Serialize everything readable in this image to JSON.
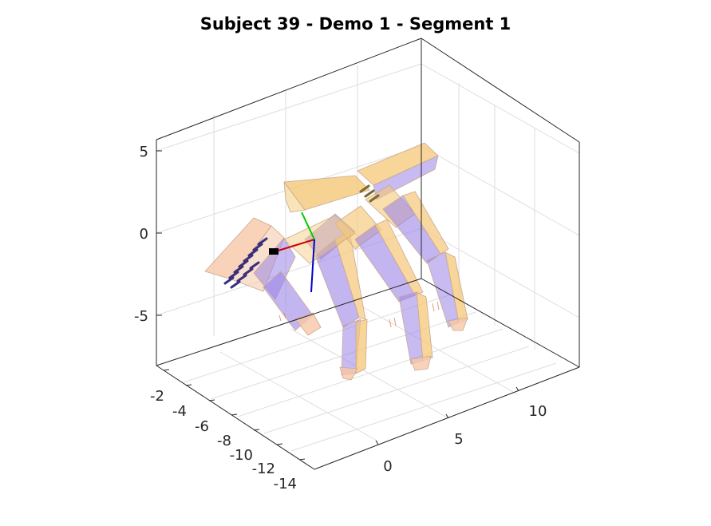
{
  "chart_data": {
    "type": "3d-surface",
    "title": "Subject 39 - Demo 1 - Segment 1",
    "xlabel": "",
    "ylabel": "",
    "zlabel": "",
    "x_ticks": [
      "0",
      "5",
      "10"
    ],
    "y_ticks": [
      "-2",
      "-4",
      "-6",
      "-8",
      "-10",
      "-12",
      "-14"
    ],
    "z_ticks": [
      "5",
      "0",
      "-5"
    ],
    "grid": true,
    "box": true,
    "colors": {
      "hand_model_a": "#f5c878",
      "hand_model_b": "#9b84e6",
      "hand_model_c": "#f7c7a9",
      "axis_x": "#cc0000",
      "axis_y": "#00cc00",
      "axis_z": "#0000cc"
    }
  }
}
